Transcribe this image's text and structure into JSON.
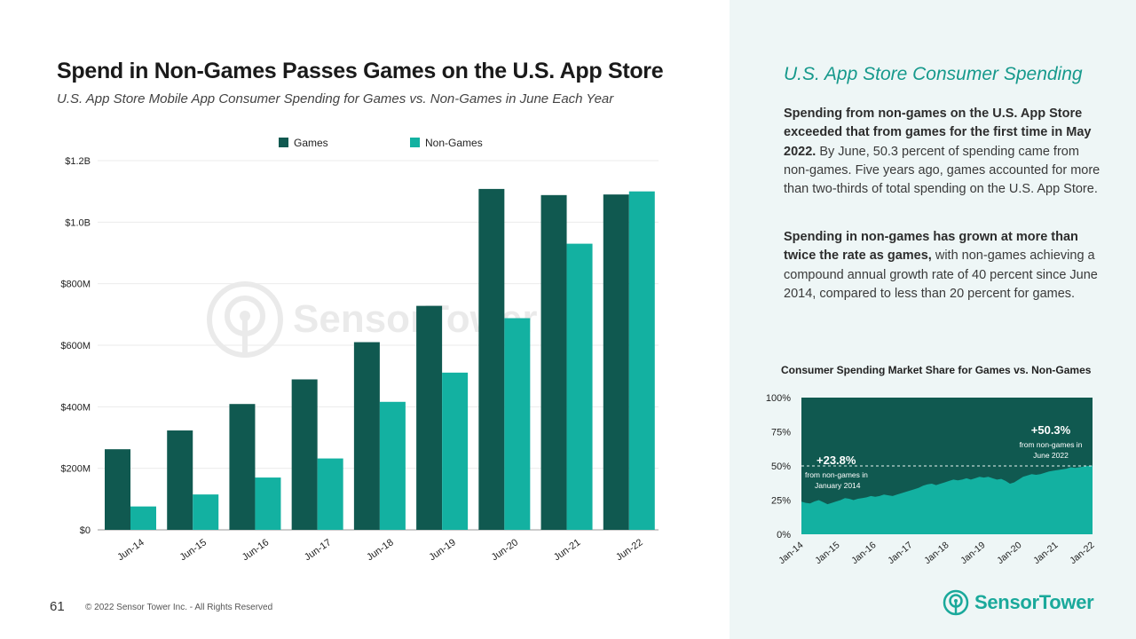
{
  "header": {
    "title": "Spend in Non-Games Passes Games on the U.S. App Store",
    "subtitle": "U.S. App Store Mobile App Consumer Spending for Games vs. Non-Games in June Each Year"
  },
  "watermark": {
    "text": "SensorTower"
  },
  "colors": {
    "games": "#105950",
    "non_games": "#13b1a1",
    "accent": "#16998c",
    "panel_bg": "#eef6f6"
  },
  "chart_data": [
    {
      "type": "bar",
      "categories": [
        "Jun-14",
        "Jun-15",
        "Jun-16",
        "Jun-17",
        "Jun-18",
        "Jun-19",
        "Jun-20",
        "Jun-21",
        "Jun-22"
      ],
      "series": [
        {
          "name": "Games",
          "values": [
            262,
            323,
            409,
            489,
            610,
            728,
            1108,
            1088,
            1090
          ]
        },
        {
          "name": "Non-Games",
          "values": [
            76,
            115,
            170,
            232,
            416,
            511,
            688,
            930,
            1100
          ]
        }
      ],
      "ylim": [
        0,
        1200
      ],
      "yticks": [
        0,
        200,
        400,
        600,
        800,
        1000,
        1200
      ],
      "ytick_labels": [
        "$0",
        "$200M",
        "$400M",
        "$600M",
        "$800M",
        "$1.0B",
        "$1.2B"
      ],
      "legend": "top-center",
      "grid": true
    },
    {
      "type": "area",
      "title": "Consumer Spending Market Share for Games vs. Non-Games",
      "x_tick_labels": [
        "Jan-14",
        "Jan-15",
        "Jan-16",
        "Jan-17",
        "Jan-18",
        "Jan-19",
        "Jan-20",
        "Jan-21",
        "Jan-22"
      ],
      "ytick_labels": [
        "100%",
        "75%",
        "50%",
        "25%",
        "0%"
      ],
      "ylim": [
        0,
        100
      ],
      "series": [
        {
          "values": [
            23.8,
            23,
            22.5,
            24,
            25,
            23.5,
            22,
            23,
            24,
            25,
            26.5,
            26,
            25,
            26,
            26.5,
            27,
            28,
            27.5,
            28,
            29,
            28.5,
            28,
            29,
            30,
            31,
            32,
            33,
            34,
            35.5,
            36.5,
            37,
            36,
            37,
            38,
            39,
            40,
            39.5,
            40,
            41,
            40,
            41,
            42,
            41.5,
            42,
            41,
            40,
            40.5,
            39,
            37,
            38,
            40,
            42,
            43,
            44,
            43.5,
            44,
            45,
            46,
            46.5,
            47,
            47.5,
            48,
            49,
            48.5,
            49,
            49.5,
            50,
            50.3
          ]
        }
      ],
      "reference_line": 50,
      "annotations": [
        {
          "value": "+23.8%",
          "text": "from non-games in January 2014"
        },
        {
          "value": "+50.3%",
          "text": "from non-games in June 2022"
        }
      ]
    }
  ],
  "panel": {
    "title": "U.S. App Store Consumer Spending",
    "p1_bold": "Spending from non-games on the U.S. App Store exceeded that from games for the first time in May 2022.",
    "p1_rest": " By June, 50.3 percent of spending came from non-games. Five years ago, games accounted for more than two-thirds of total spending on the U.S. App Store.",
    "p2_bold": "Spending in non-games has grown at more than twice the rate as games,",
    "p2_rest": " with non-games achieving a compound annual growth rate of 40 percent since June 2014, compared to less than 20 percent for games."
  },
  "footer": {
    "page_number": "61",
    "copyright": "© 2022 Sensor Tower Inc. - All Rights Reserved"
  },
  "brand": {
    "name": "SensorTower"
  }
}
